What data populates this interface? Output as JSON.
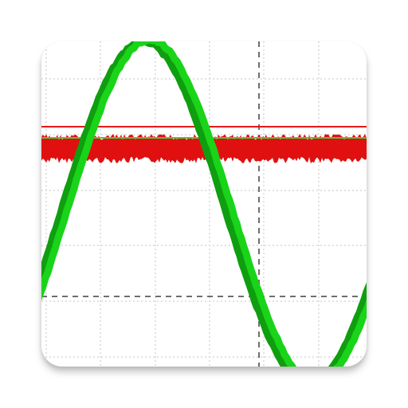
{
  "icon": {
    "description_name": "oscilloscope-app-icon"
  },
  "colors": {
    "background": "#ffffff",
    "grid": "#d9d9d9",
    "cursor": "#6e6e6e",
    "waveform_green": "#19d419",
    "waveform_green_dark": "#0f9e0f",
    "noise_red": "#e01010",
    "trigger_red": "#e61a1a"
  },
  "scope": {
    "waveform_shape": "sine",
    "waveform_phase": "descending",
    "noise_channel": "flat noisy band",
    "trigger_line": true,
    "vertical_cursor": "dashed",
    "horizontal_cursor": "dashed",
    "grid": "dotted"
  }
}
